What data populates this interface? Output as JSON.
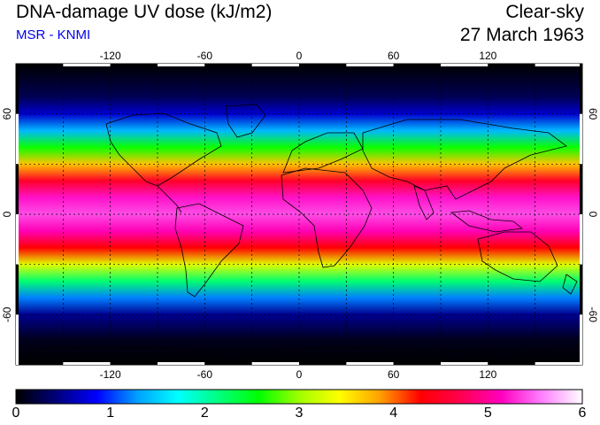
{
  "header": {
    "title": "DNA-damage UV dose (kJ/m2)",
    "subtitle": "MSR - KNMI",
    "condition": "Clear-sky",
    "date": "27 March 1963"
  },
  "map": {
    "lon_range": [
      -180,
      180
    ],
    "lat_range": [
      -90,
      90
    ],
    "lon_ticks": [
      -120,
      -60,
      0,
      60,
      120
    ],
    "lat_ticks": [
      60,
      0,
      -60
    ],
    "grid_lines_lon": [
      -150,
      -120,
      -90,
      -60,
      -30,
      0,
      30,
      60,
      90,
      120,
      150
    ],
    "grid_lines_lat": [
      -60,
      -30,
      0,
      30,
      60
    ],
    "grid": "dotted",
    "colormap": [
      "#000000",
      "#00007a",
      "#0000ff",
      "#00a0ff",
      "#00ffff",
      "#00ff80",
      "#00ff00",
      "#a0ff00",
      "#ffff00",
      "#ffa000",
      "#ff0000",
      "#ff0050",
      "#ff00c0",
      "#ff80ff",
      "#ffffff"
    ],
    "value_range": [
      0,
      6
    ],
    "zonal_profile": [
      {
        "lat": 90,
        "value": 0.0
      },
      {
        "lat": 70,
        "value": 0.3
      },
      {
        "lat": 60,
        "value": 0.7
      },
      {
        "lat": 50,
        "value": 1.4
      },
      {
        "lat": 40,
        "value": 2.6
      },
      {
        "lat": 30,
        "value": 3.7
      },
      {
        "lat": 20,
        "value": 4.5
      },
      {
        "lat": 10,
        "value": 5.2
      },
      {
        "lat": 0,
        "value": 5.4
      },
      {
        "lat": -10,
        "value": 5.1
      },
      {
        "lat": -20,
        "value": 4.3
      },
      {
        "lat": -30,
        "value": 3.3
      },
      {
        "lat": -40,
        "value": 2.2
      },
      {
        "lat": -50,
        "value": 1.2
      },
      {
        "lat": -60,
        "value": 0.5
      },
      {
        "lat": -75,
        "value": 0.1
      },
      {
        "lat": -90,
        "value": 0.0
      }
    ]
  },
  "colorbar": {
    "ticks": [
      "0",
      "1",
      "2",
      "3",
      "4",
      "5",
      "6"
    ]
  }
}
